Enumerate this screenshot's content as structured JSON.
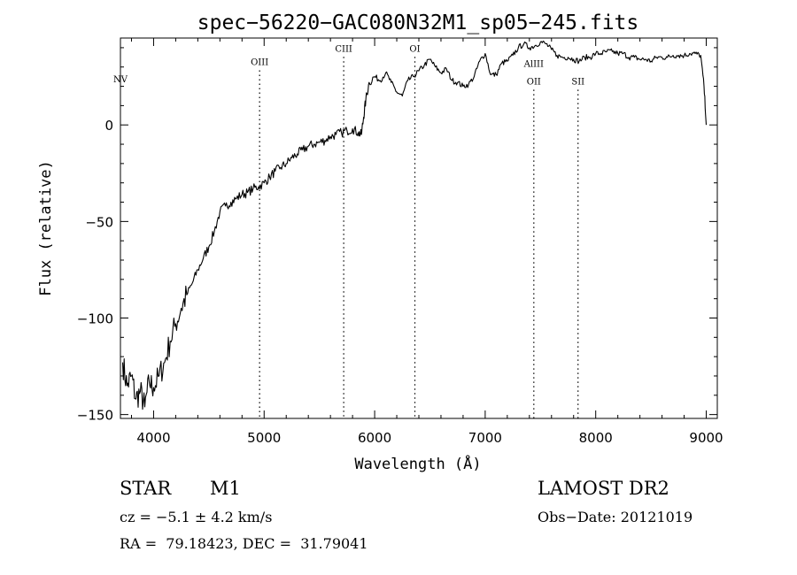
{
  "chart_data": {
    "type": "line",
    "title": "spec−56220−GAC080N32M1_sp05−245.fits",
    "xlabel": "Wavelength (Å)",
    "ylabel": "Flux (relative)",
    "xlim": [
      3700,
      9100
    ],
    "ylim": [
      -152,
      45
    ],
    "xticks": [
      4000,
      5000,
      6000,
      7000,
      8000,
      9000
    ],
    "xtick_labels": [
      "4000",
      "5000",
      "6000",
      "7000",
      "8000",
      "9000"
    ],
    "yticks": [
      -150,
      -100,
      -50,
      0
    ],
    "ytick_labels": [
      "−150",
      "−100",
      "−50",
      "0"
    ],
    "grid": false,
    "series": [
      {
        "x": [
          3720,
          3760,
          3800,
          3840,
          3880,
          3920,
          3960,
          4000,
          4050,
          4100,
          4150,
          4200,
          4250,
          4300,
          4350,
          4400,
          4450,
          4500,
          4550,
          4600,
          4650,
          4700,
          4750,
          4800,
          4850,
          4900,
          4950,
          5000,
          5050,
          5100,
          5150,
          5200,
          5250,
          5300,
          5350,
          5400,
          5450,
          5500,
          5550,
          5600,
          5650,
          5700,
          5750,
          5800,
          5850,
          5880,
          5900,
          5920,
          5950,
          6000,
          6050,
          6100,
          6150,
          6200,
          6250,
          6300,
          6350,
          6400,
          6450,
          6500,
          6550,
          6600,
          6650,
          6700,
          6750,
          6800,
          6850,
          6900,
          6950,
          7000,
          7050,
          7100,
          7150,
          7200,
          7250,
          7300,
          7350,
          7400,
          7450,
          7500,
          7550,
          7600,
          7650,
          7700,
          7750,
          7800,
          7850,
          7900,
          7950,
          8000,
          8050,
          8100,
          8150,
          8200,
          8250,
          8300,
          8350,
          8400,
          8450,
          8500,
          8550,
          8600,
          8650,
          8700,
          8750,
          8800,
          8850,
          8900,
          8950,
          8980,
          9000
        ],
        "values": [
          -123,
          -135,
          -130,
          -142,
          -138,
          -146,
          -133,
          -136,
          -130,
          -123,
          -112,
          -103,
          -95,
          -88,
          -82,
          -75,
          -69,
          -63,
          -55,
          -45,
          -42,
          -40,
          -38,
          -36,
          -35,
          -33,
          -32,
          -30,
          -27,
          -24,
          -22,
          -20,
          -17,
          -15,
          -13,
          -11,
          -10,
          -9,
          -8,
          -6,
          -5,
          -4,
          -3,
          -2,
          -4,
          -5,
          4,
          13,
          22,
          25,
          23,
          27,
          22,
          17,
          15,
          23,
          25,
          28,
          31,
          34,
          30,
          27,
          29,
          23,
          22,
          20,
          21,
          25,
          33,
          37,
          26,
          26,
          32,
          33,
          36,
          40,
          42,
          40,
          41,
          43,
          42,
          39,
          36,
          35,
          35,
          34,
          33,
          35,
          35,
          37,
          37,
          38,
          38,
          37,
          37,
          35,
          35,
          34,
          34,
          33,
          35,
          35,
          35,
          36,
          36,
          36,
          37,
          37,
          36,
          20,
          0
        ]
      }
    ],
    "annotations": [
      {
        "label": "NV",
        "x": 3720,
        "y": 22,
        "line": false
      },
      {
        "label": "OIII",
        "x": 4959,
        "y": 31,
        "line": true
      },
      {
        "label": "CIII",
        "x": 5720,
        "y": 38,
        "line": true
      },
      {
        "label": "OI",
        "x": 6364,
        "y": 38,
        "line": true
      },
      {
        "label": "AlIII",
        "x": 7440,
        "y": 30,
        "line": false
      },
      {
        "label": "OII",
        "x": 7440,
        "y": 21,
        "line": true
      },
      {
        "label": "SII",
        "x": 7840,
        "y": 21,
        "line": true
      }
    ]
  },
  "info": {
    "class_label": "STAR",
    "subclass": "M1",
    "survey": "LAMOST DR2",
    "cz": "cz = −5.1 ± 4.2 km/s",
    "obs_date": "Obs−Date: 20121019",
    "coords": "RA =  79.18423, DEC =  31.79041"
  }
}
